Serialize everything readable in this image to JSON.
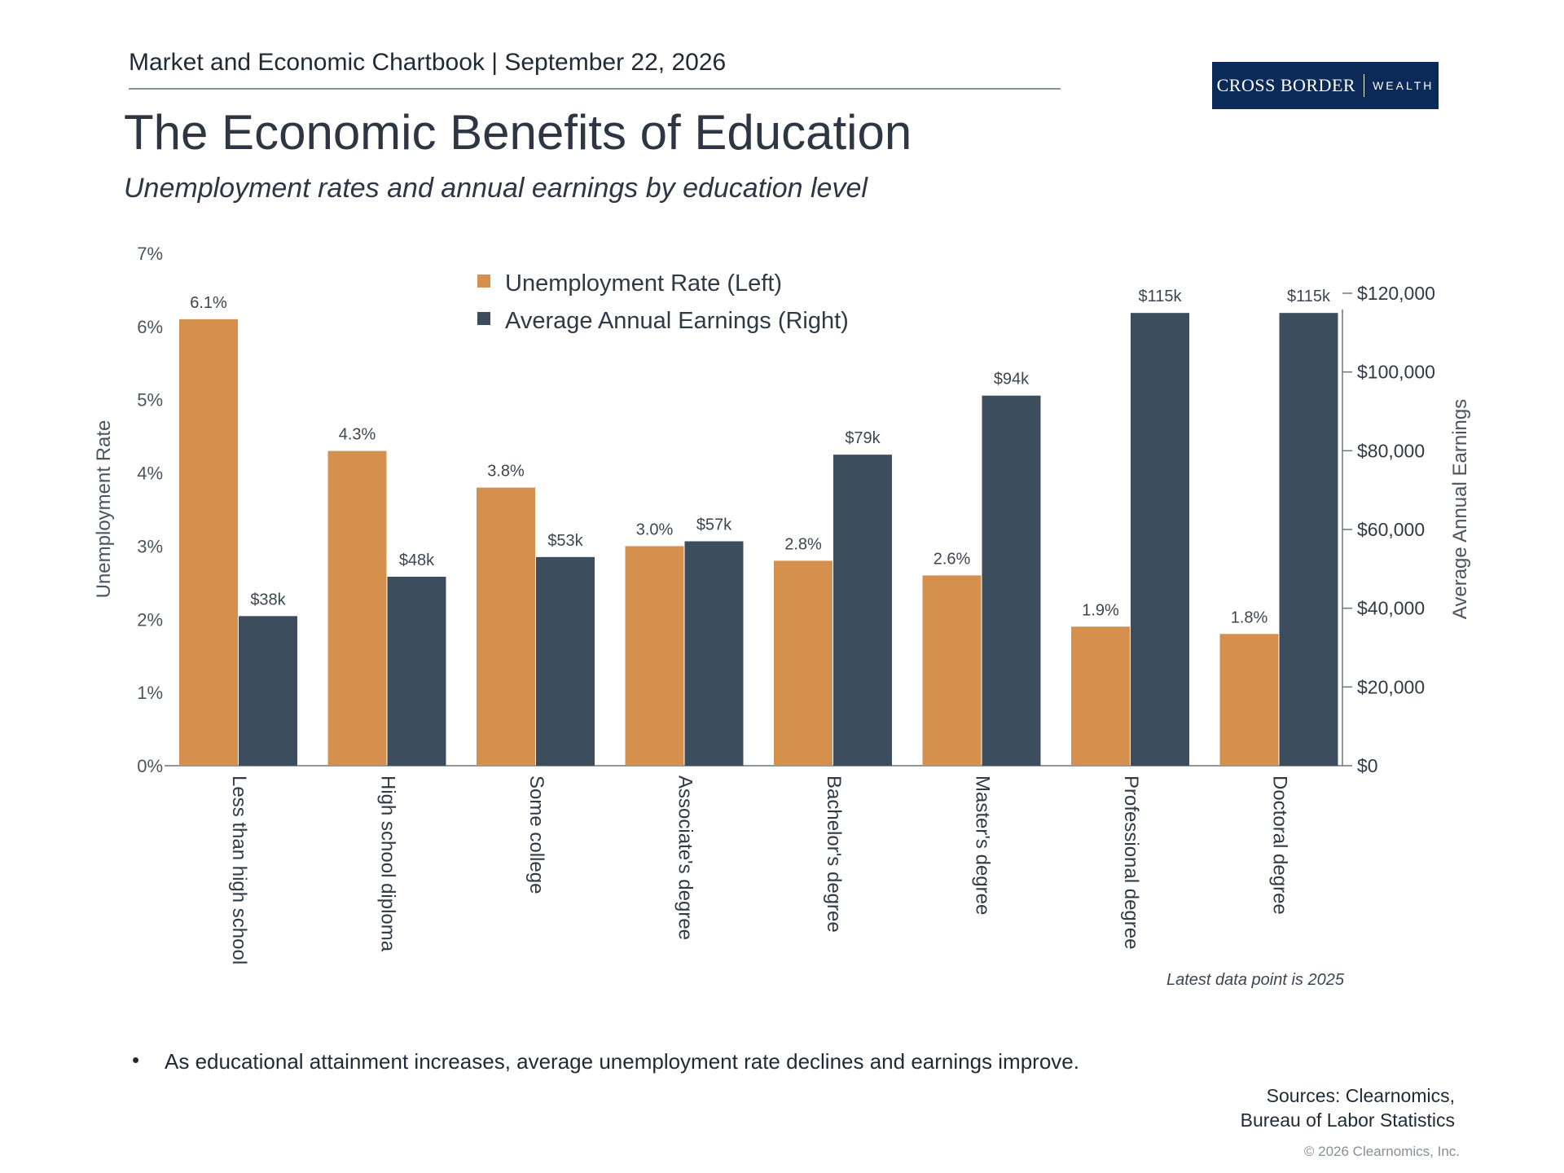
{
  "header": {
    "text": "Market and Economic Chartbook | September 22, 2026",
    "logo_left": "CROSS BORDER",
    "logo_right": "WEALTH"
  },
  "title": "The Economic Benefits of Education",
  "subtitle": "Unemployment rates and annual earnings by education level",
  "colors": {
    "unemployment": "#d4904c",
    "earnings": "#3c4d5e",
    "logo_bg": "#0b2a58"
  },
  "chart_data": {
    "type": "bar",
    "categories": [
      "Less than high school",
      "High school diploma",
      "Some college",
      "Associate's degree",
      "Bachelor's degree",
      "Master's degree",
      "Professional degree",
      "Doctoral degree"
    ],
    "series": [
      {
        "name": "Unemployment Rate (Left)",
        "axis": "left",
        "values": [
          6.1,
          4.3,
          3.8,
          3.0,
          2.8,
          2.6,
          1.9,
          1.8
        ],
        "labels": [
          "6.1%",
          "4.3%",
          "3.8%",
          "3.0%",
          "2.8%",
          "2.6%",
          "1.9%",
          "1.8%"
        ]
      },
      {
        "name": "Average Annual Earnings (Right)",
        "axis": "right",
        "values": [
          38000,
          48000,
          53000,
          57000,
          79000,
          94000,
          115000,
          115000
        ],
        "labels": [
          "$38k",
          "$48k",
          "$53k",
          "$57k",
          "$79k",
          "$94k",
          "$115k",
          "$115k"
        ]
      }
    ],
    "y_left": {
      "label": "Unemployment Rate",
      "range": [
        0,
        7
      ],
      "ticks": [
        "0%",
        "1%",
        "2%",
        "3%",
        "4%",
        "5%",
        "6%",
        "7%"
      ]
    },
    "y_right": {
      "label": "Average Annual Earnings",
      "range": [
        0,
        130000
      ],
      "ticks": [
        "$0",
        "$20,000",
        "$40,000",
        "$60,000",
        "$80,000",
        "$100,000",
        "$120,000"
      ],
      "tick_values": [
        0,
        20000,
        40000,
        60000,
        80000,
        100000,
        120000
      ]
    },
    "legend_position": "top-center",
    "grid": false,
    "note": "Latest data point is 2025"
  },
  "bullet": "As educational attainment increases, average unemployment rate declines and earnings improve.",
  "sources": {
    "line1": "Sources: Clearnomics,",
    "line2": "Bureau of Labor Statistics"
  },
  "copyright": "© 2026 Clearnomics, Inc."
}
